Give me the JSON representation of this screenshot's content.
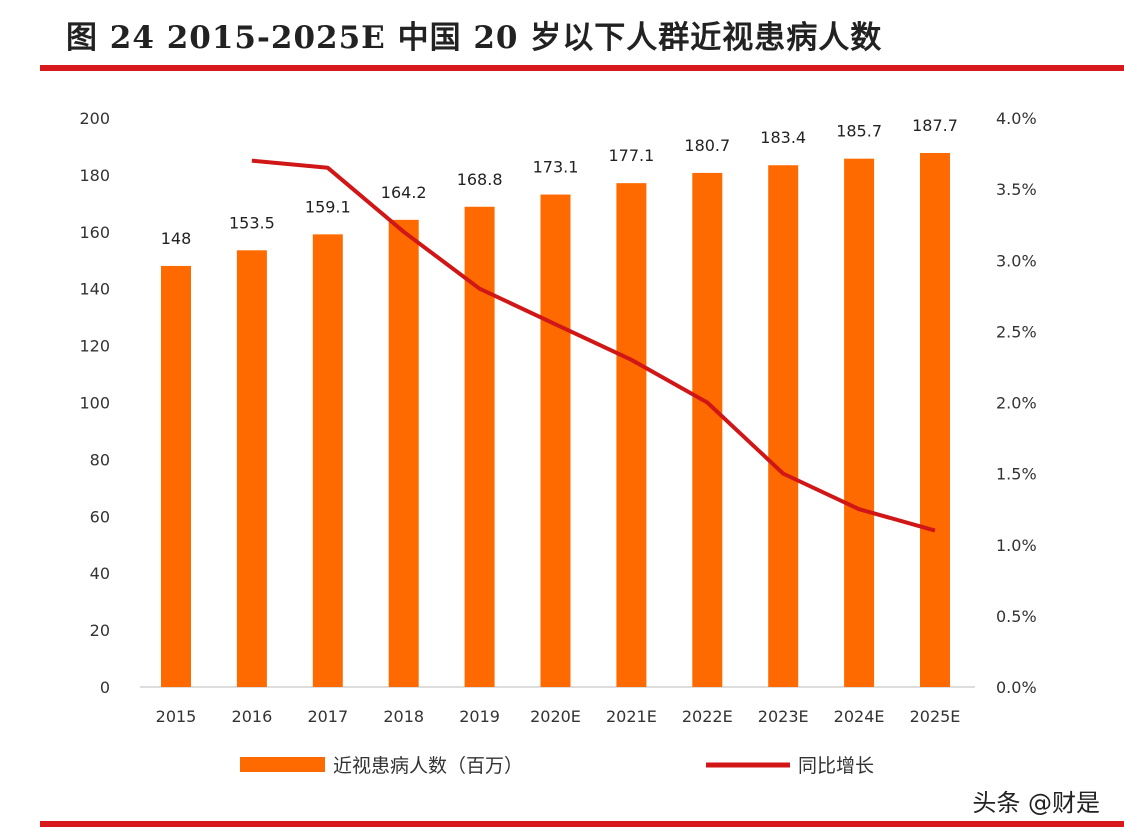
{
  "title": "图 24 2015-2025E 中国 20 岁以下人群近视患病人数",
  "watermark": "头条 @财是",
  "colors": {
    "bar": "#ff6a00",
    "line": "#d01616",
    "rule": "#d7191c"
  },
  "chart_data": {
    "type": "bar+line",
    "categories": [
      "2015",
      "2016",
      "2017",
      "2018",
      "2019",
      "2020E",
      "2021E",
      "2022E",
      "2023E",
      "2024E",
      "2025E"
    ],
    "series": [
      {
        "name": "近视患病人数（百万）",
        "type": "bar",
        "axis": "left",
        "values": [
          148,
          153.5,
          159.1,
          164.2,
          168.8,
          173.1,
          177.1,
          180.7,
          183.4,
          185.7,
          187.7
        ],
        "labels": [
          "148",
          "153.5",
          "159.1",
          "164.2",
          "168.8",
          "173.1",
          "177.1",
          "180.7",
          "183.4",
          "185.7",
          "187.7"
        ]
      },
      {
        "name": "同比增长",
        "type": "line",
        "axis": "right",
        "values": [
          null,
          3.7,
          3.65,
          3.2,
          2.8,
          2.55,
          2.3,
          2.0,
          1.5,
          1.25,
          1.1
        ]
      }
    ],
    "left_axis": {
      "ylim": [
        0,
        200
      ],
      "ticks": [
        "0",
        "20",
        "40",
        "60",
        "80",
        "100",
        "120",
        "140",
        "160",
        "180",
        "200"
      ]
    },
    "right_axis": {
      "ylim": [
        0,
        4
      ],
      "ticks": [
        "0.0%",
        "0.5%",
        "1.0%",
        "1.5%",
        "2.0%",
        "2.5%",
        "3.0%",
        "3.5%",
        "4.0%"
      ]
    },
    "grid": false,
    "legend": "bottom"
  }
}
